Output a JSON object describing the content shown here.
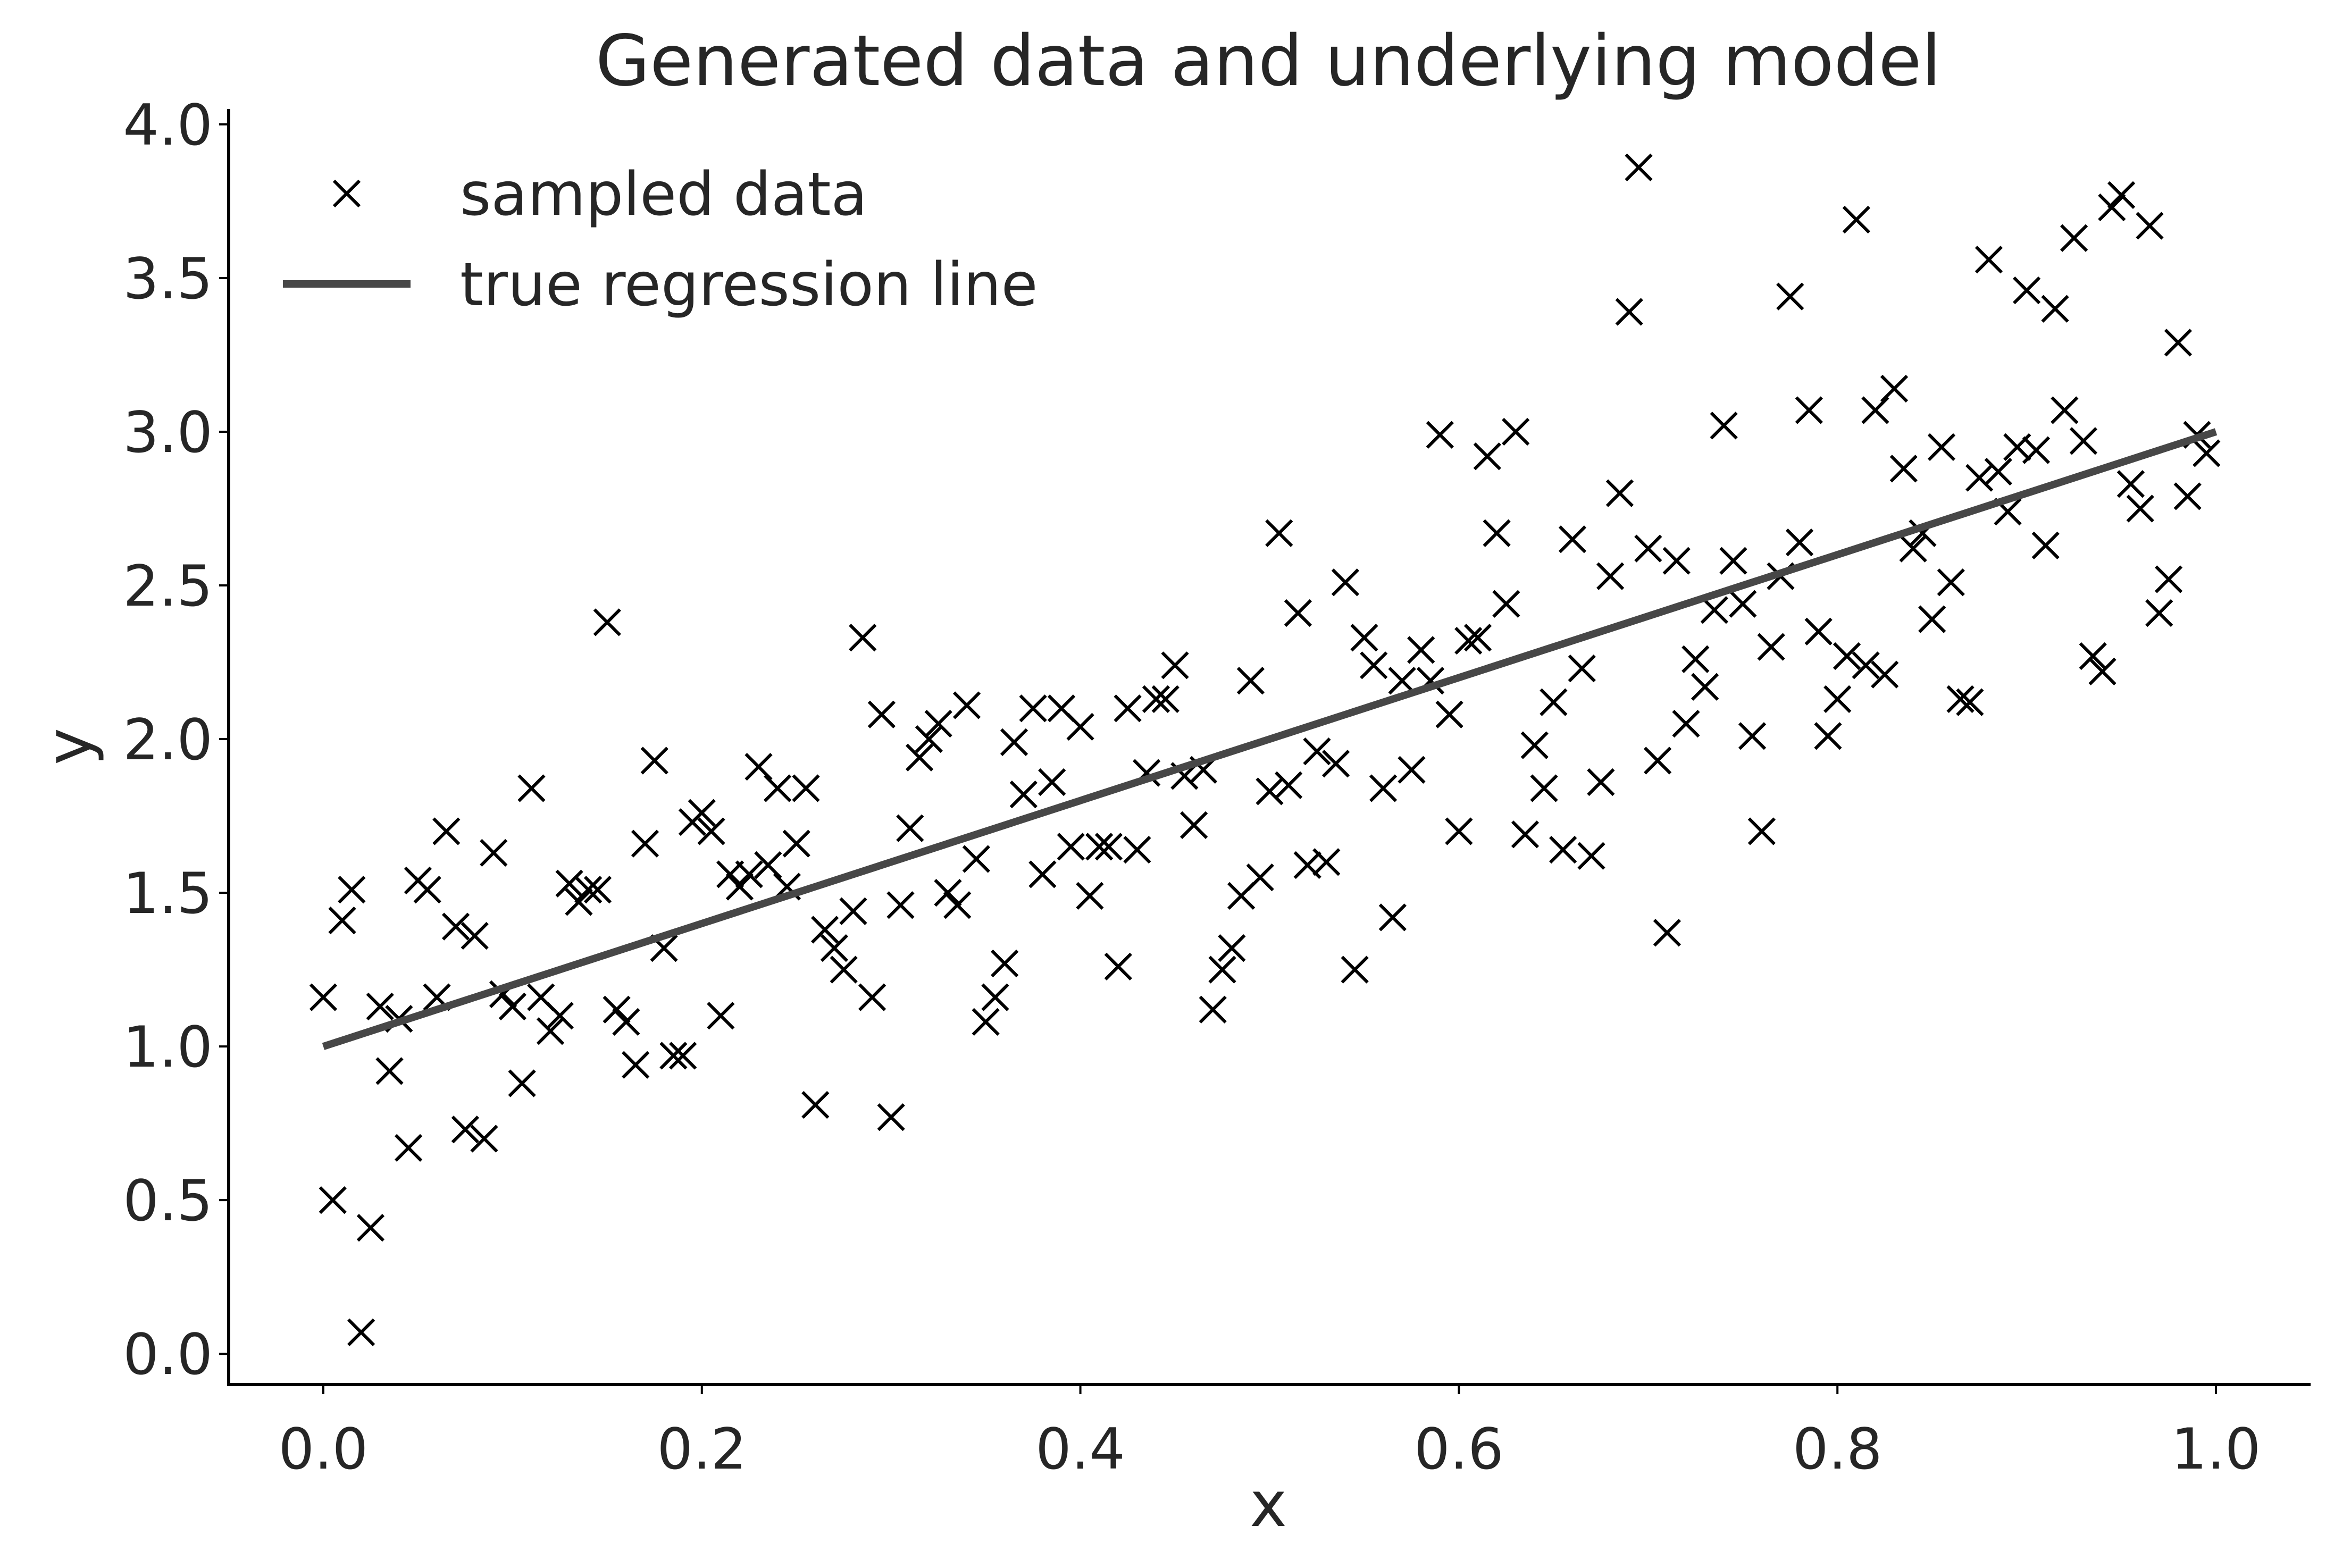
{
  "chart_data": {
    "type": "scatter",
    "title": "Generated data and underlying model",
    "xlabel": "x",
    "ylabel": "y",
    "xlim": [
      -0.05,
      1.05
    ],
    "ylim": [
      -0.1,
      4.05
    ],
    "xticks": [
      0.0,
      0.2,
      0.4,
      0.6,
      0.8,
      1.0
    ],
    "xtick_labels": [
      "0.0",
      "0.2",
      "0.4",
      "0.6",
      "0.8",
      "1.0"
    ],
    "yticks": [
      0.0,
      0.5,
      1.0,
      1.5,
      2.0,
      2.5,
      3.0,
      3.5,
      4.0
    ],
    "ytick_labels": [
      "0.0",
      "0.5",
      "1.0",
      "1.5",
      "2.0",
      "2.5",
      "3.0",
      "3.5",
      "4.0"
    ],
    "grid": false,
    "legend_position": "top-left",
    "legend": {
      "scatter_label": "sampled data",
      "line_label": "true regression line"
    },
    "colors": {
      "marker": "#000000",
      "line": "#474747",
      "text": "#262626"
    },
    "series": [
      {
        "name": "sampled data",
        "kind": "scatter",
        "marker": "x",
        "points": [
          [
            0.0,
            1.16
          ],
          [
            0.005,
            0.5
          ],
          [
            0.01,
            1.41
          ],
          [
            0.015,
            1.51
          ],
          [
            0.02,
            0.07
          ],
          [
            0.025,
            0.41
          ],
          [
            0.03,
            1.13
          ],
          [
            0.035,
            0.92
          ],
          [
            0.04,
            1.09
          ],
          [
            0.045,
            0.67
          ],
          [
            0.05,
            1.54
          ],
          [
            0.055,
            1.51
          ],
          [
            0.06,
            1.16
          ],
          [
            0.065,
            1.7
          ],
          [
            0.07,
            1.39
          ],
          [
            0.075,
            0.73
          ],
          [
            0.08,
            1.36
          ],
          [
            0.085,
            0.7
          ],
          [
            0.09,
            1.63
          ],
          [
            0.095,
            1.17
          ],
          [
            0.1,
            1.13
          ],
          [
            0.105,
            0.88
          ],
          [
            0.11,
            1.84
          ],
          [
            0.115,
            1.16
          ],
          [
            0.12,
            1.05
          ],
          [
            0.125,
            1.1
          ],
          [
            0.13,
            1.53
          ],
          [
            0.135,
            1.47
          ],
          [
            0.14,
            1.51
          ],
          [
            0.145,
            1.51
          ],
          [
            0.15,
            2.38
          ],
          [
            0.155,
            1.12
          ],
          [
            0.16,
            1.08
          ],
          [
            0.165,
            0.94
          ],
          [
            0.17,
            1.66
          ],
          [
            0.175,
            1.93
          ],
          [
            0.18,
            1.32
          ],
          [
            0.185,
            0.97
          ],
          [
            0.19,
            0.97
          ],
          [
            0.195,
            1.73
          ],
          [
            0.2,
            1.76
          ],
          [
            0.205,
            1.7
          ],
          [
            0.21,
            1.1
          ],
          [
            0.215,
            1.56
          ],
          [
            0.22,
            1.52
          ],
          [
            0.225,
            1.56
          ],
          [
            0.23,
            1.91
          ],
          [
            0.235,
            1.59
          ],
          [
            0.24,
            1.84
          ],
          [
            0.245,
            1.52
          ],
          [
            0.25,
            1.66
          ],
          [
            0.255,
            1.84
          ],
          [
            0.26,
            0.81
          ],
          [
            0.265,
            1.38
          ],
          [
            0.27,
            1.32
          ],
          [
            0.275,
            1.25
          ],
          [
            0.28,
            1.44
          ],
          [
            0.285,
            2.33
          ],
          [
            0.29,
            1.16
          ],
          [
            0.295,
            2.08
          ],
          [
            0.3,
            0.77
          ],
          [
            0.305,
            1.46
          ],
          [
            0.31,
            1.71
          ],
          [
            0.315,
            1.94
          ],
          [
            0.32,
            2.0
          ],
          [
            0.325,
            2.05
          ],
          [
            0.33,
            1.5
          ],
          [
            0.335,
            1.46
          ],
          [
            0.34,
            2.11
          ],
          [
            0.345,
            1.61
          ],
          [
            0.35,
            1.08
          ],
          [
            0.355,
            1.16
          ],
          [
            0.36,
            1.27
          ],
          [
            0.365,
            1.99
          ],
          [
            0.37,
            1.82
          ],
          [
            0.375,
            2.1
          ],
          [
            0.38,
            1.56
          ],
          [
            0.385,
            1.86
          ],
          [
            0.39,
            2.1
          ],
          [
            0.395,
            1.65
          ],
          [
            0.4,
            2.04
          ],
          [
            0.405,
            1.49
          ],
          [
            0.41,
            1.65
          ],
          [
            0.415,
            1.65
          ],
          [
            0.42,
            1.26
          ],
          [
            0.425,
            2.1
          ],
          [
            0.43,
            1.64
          ],
          [
            0.435,
            1.89
          ],
          [
            0.44,
            2.13
          ],
          [
            0.445,
            2.13
          ],
          [
            0.45,
            2.24
          ],
          [
            0.455,
            1.88
          ],
          [
            0.46,
            1.72
          ],
          [
            0.465,
            1.9
          ],
          [
            0.47,
            1.12
          ],
          [
            0.475,
            1.25
          ],
          [
            0.48,
            1.32
          ],
          [
            0.485,
            1.49
          ],
          [
            0.49,
            2.19
          ],
          [
            0.495,
            1.55
          ],
          [
            0.5,
            1.83
          ],
          [
            0.505,
            2.67
          ],
          [
            0.51,
            1.85
          ],
          [
            0.515,
            2.41
          ],
          [
            0.52,
            1.59
          ],
          [
            0.525,
            1.96
          ],
          [
            0.53,
            1.6
          ],
          [
            0.535,
            1.92
          ],
          [
            0.54,
            2.51
          ],
          [
            0.545,
            1.25
          ],
          [
            0.55,
            2.33
          ],
          [
            0.555,
            2.24
          ],
          [
            0.56,
            1.84
          ],
          [
            0.565,
            1.42
          ],
          [
            0.57,
            2.19
          ],
          [
            0.575,
            1.9
          ],
          [
            0.58,
            2.29
          ],
          [
            0.585,
            2.19
          ],
          [
            0.59,
            2.99
          ],
          [
            0.595,
            2.08
          ],
          [
            0.6,
            1.7
          ],
          [
            0.605,
            2.32
          ],
          [
            0.61,
            2.33
          ],
          [
            0.615,
            2.92
          ],
          [
            0.62,
            2.67
          ],
          [
            0.625,
            2.44
          ],
          [
            0.63,
            3.0
          ],
          [
            0.635,
            1.69
          ],
          [
            0.64,
            1.98
          ],
          [
            0.645,
            1.84
          ],
          [
            0.65,
            2.12
          ],
          [
            0.655,
            1.64
          ],
          [
            0.66,
            2.65
          ],
          [
            0.665,
            2.23
          ],
          [
            0.67,
            1.62
          ],
          [
            0.675,
            1.86
          ],
          [
            0.68,
            2.53
          ],
          [
            0.685,
            2.8
          ],
          [
            0.69,
            3.39
          ],
          [
            0.695,
            3.86
          ],
          [
            0.7,
            2.62
          ],
          [
            0.705,
            1.93
          ],
          [
            0.71,
            1.37
          ],
          [
            0.715,
            2.58
          ],
          [
            0.72,
            2.05
          ],
          [
            0.725,
            2.26
          ],
          [
            0.73,
            2.17
          ],
          [
            0.735,
            2.42
          ],
          [
            0.74,
            3.02
          ],
          [
            0.745,
            2.58
          ],
          [
            0.75,
            2.44
          ],
          [
            0.755,
            2.01
          ],
          [
            0.76,
            1.7
          ],
          [
            0.765,
            2.3
          ],
          [
            0.77,
            2.53
          ],
          [
            0.775,
            3.44
          ],
          [
            0.78,
            2.64
          ],
          [
            0.785,
            3.07
          ],
          [
            0.79,
            2.35
          ],
          [
            0.795,
            2.01
          ],
          [
            0.8,
            2.13
          ],
          [
            0.805,
            2.27
          ],
          [
            0.81,
            3.69
          ],
          [
            0.815,
            2.24
          ],
          [
            0.82,
            3.07
          ],
          [
            0.825,
            2.21
          ],
          [
            0.83,
            3.14
          ],
          [
            0.835,
            2.88
          ],
          [
            0.84,
            2.62
          ],
          [
            0.845,
            2.67
          ],
          [
            0.85,
            2.39
          ],
          [
            0.855,
            2.95
          ],
          [
            0.86,
            2.51
          ],
          [
            0.865,
            2.13
          ],
          [
            0.87,
            2.12
          ],
          [
            0.875,
            2.85
          ],
          [
            0.88,
            3.56
          ],
          [
            0.885,
            2.87
          ],
          [
            0.89,
            2.74
          ],
          [
            0.895,
            2.95
          ],
          [
            0.9,
            3.46
          ],
          [
            0.905,
            2.94
          ],
          [
            0.91,
            2.63
          ],
          [
            0.915,
            3.4
          ],
          [
            0.92,
            3.07
          ],
          [
            0.925,
            3.63
          ],
          [
            0.93,
            2.97
          ],
          [
            0.935,
            2.27
          ],
          [
            0.94,
            2.22
          ],
          [
            0.945,
            3.73
          ],
          [
            0.95,
            3.77
          ],
          [
            0.955,
            2.83
          ],
          [
            0.96,
            2.75
          ],
          [
            0.965,
            3.67
          ],
          [
            0.97,
            2.41
          ],
          [
            0.975,
            2.52
          ],
          [
            0.98,
            3.29
          ],
          [
            0.985,
            2.79
          ],
          [
            0.99,
            2.99
          ],
          [
            0.995,
            2.93
          ]
        ]
      },
      {
        "name": "true regression line",
        "kind": "line",
        "x": [
          0.0,
          1.0
        ],
        "y": [
          1.0,
          3.0
        ]
      }
    ]
  }
}
